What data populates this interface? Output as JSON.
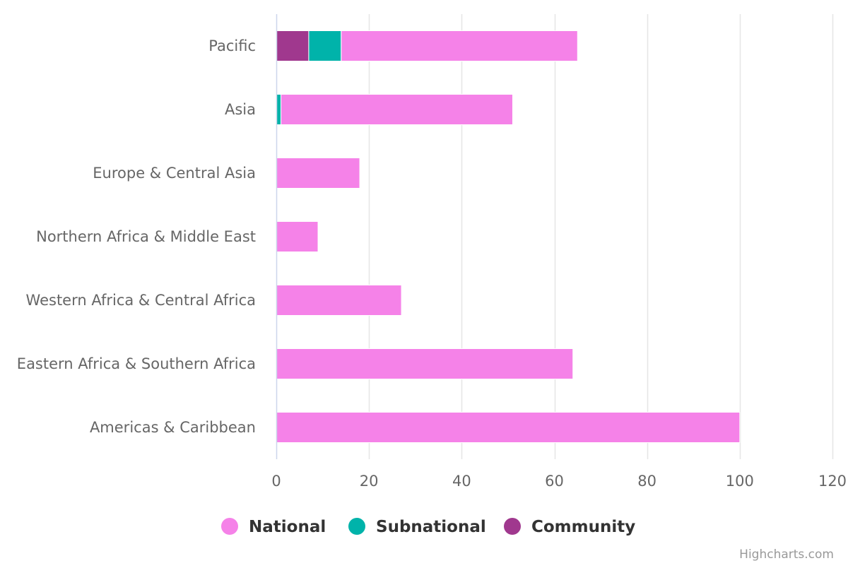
{
  "chart_data": {
    "type": "bar",
    "orientation": "horizontal",
    "stacking": "normal",
    "categories": [
      "Pacific",
      "Asia",
      "Europe & Central Asia",
      "Northern Africa & Middle East",
      "Western Africa & Central Africa",
      "Eastern Africa & Southern Africa",
      "Americas & Caribbean"
    ],
    "series": [
      {
        "name": "Community",
        "color": "#a0388e",
        "values": [
          7,
          0,
          0,
          0,
          0,
          0,
          0
        ]
      },
      {
        "name": "Subnational",
        "color": "#00b3aa",
        "values": [
          7,
          1,
          0,
          0,
          0,
          0,
          0
        ]
      },
      {
        "name": "National",
        "color": "#f582e8",
        "values": [
          51,
          50,
          18,
          9,
          27,
          64,
          100
        ]
      }
    ],
    "xlim": [
      0,
      120
    ],
    "ticks": [
      0,
      20,
      40,
      60,
      80,
      100,
      120
    ],
    "grid": true,
    "legend_position": "bottom-center",
    "legend_order": [
      "National",
      "Subnational",
      "Community"
    ]
  },
  "credits": "Highcharts.com"
}
